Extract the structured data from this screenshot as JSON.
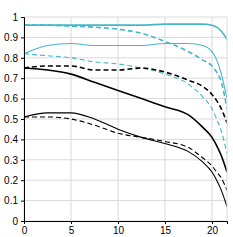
{
  "chart_data": {
    "type": "line",
    "x": [
      0,
      2.5,
      5,
      7.5,
      10,
      12.5,
      15,
      17.5,
      19,
      20,
      20.5,
      21,
      21.6
    ],
    "series": [
      {
        "color": "#45b6cb",
        "line_style": "solid",
        "values": [
          0.96,
          0.96,
          0.96,
          0.96,
          0.96,
          0.96,
          0.965,
          0.965,
          0.965,
          0.96,
          0.95,
          0.93,
          0.89
        ]
      },
      {
        "color": "#45b6cb",
        "line_style": "dashed",
        "values": [
          0.96,
          0.96,
          0.955,
          0.95,
          0.94,
          0.92,
          0.88,
          0.83,
          0.79,
          0.76,
          0.73,
          0.68,
          0.55
        ]
      },
      {
        "color": "#45b6cb",
        "line_style": "solid",
        "values": [
          0.82,
          0.86,
          0.87,
          0.86,
          0.86,
          0.86,
          0.87,
          0.87,
          0.86,
          0.83,
          0.79,
          0.72,
          0.6
        ]
      },
      {
        "color": "#45b6cb",
        "line_style": "dashed",
        "values": [
          0.82,
          0.81,
          0.8,
          0.78,
          0.77,
          0.75,
          0.72,
          0.67,
          0.61,
          0.55,
          0.5,
          0.44,
          0.33
        ]
      },
      {
        "color": "#000000",
        "line_style": "solid",
        "values": [
          0.75,
          0.74,
          0.72,
          0.68,
          0.64,
          0.6,
          0.56,
          0.52,
          0.46,
          0.41,
          0.37,
          0.32,
          0.24
        ]
      },
      {
        "color": "#000000",
        "line_style": "dashed",
        "values": [
          0.75,
          0.76,
          0.76,
          0.74,
          0.74,
          0.75,
          0.73,
          0.69,
          0.66,
          0.62,
          0.59,
          0.55,
          0.48
        ]
      },
      {
        "color": "#000000",
        "line_style": "solid",
        "values": [
          0.51,
          0.53,
          0.53,
          0.5,
          0.45,
          0.41,
          0.38,
          0.34,
          0.29,
          0.24,
          0.2,
          0.15,
          0.07
        ]
      },
      {
        "color": "#000000",
        "line_style": "dashed",
        "values": [
          0.51,
          0.51,
          0.5,
          0.47,
          0.43,
          0.41,
          0.39,
          0.36,
          0.31,
          0.27,
          0.24,
          0.21,
          0.15
        ]
      }
    ],
    "xlim": [
      0,
      21.6
    ],
    "xticks": [
      0,
      5,
      10,
      15,
      20
    ],
    "ylim": [
      0,
      1
    ],
    "yticks": [
      0,
      0.1,
      0.2,
      0.3,
      0.4,
      0.5,
      0.6,
      0.7,
      0.8,
      0.9,
      1
    ],
    "grid": true
  }
}
